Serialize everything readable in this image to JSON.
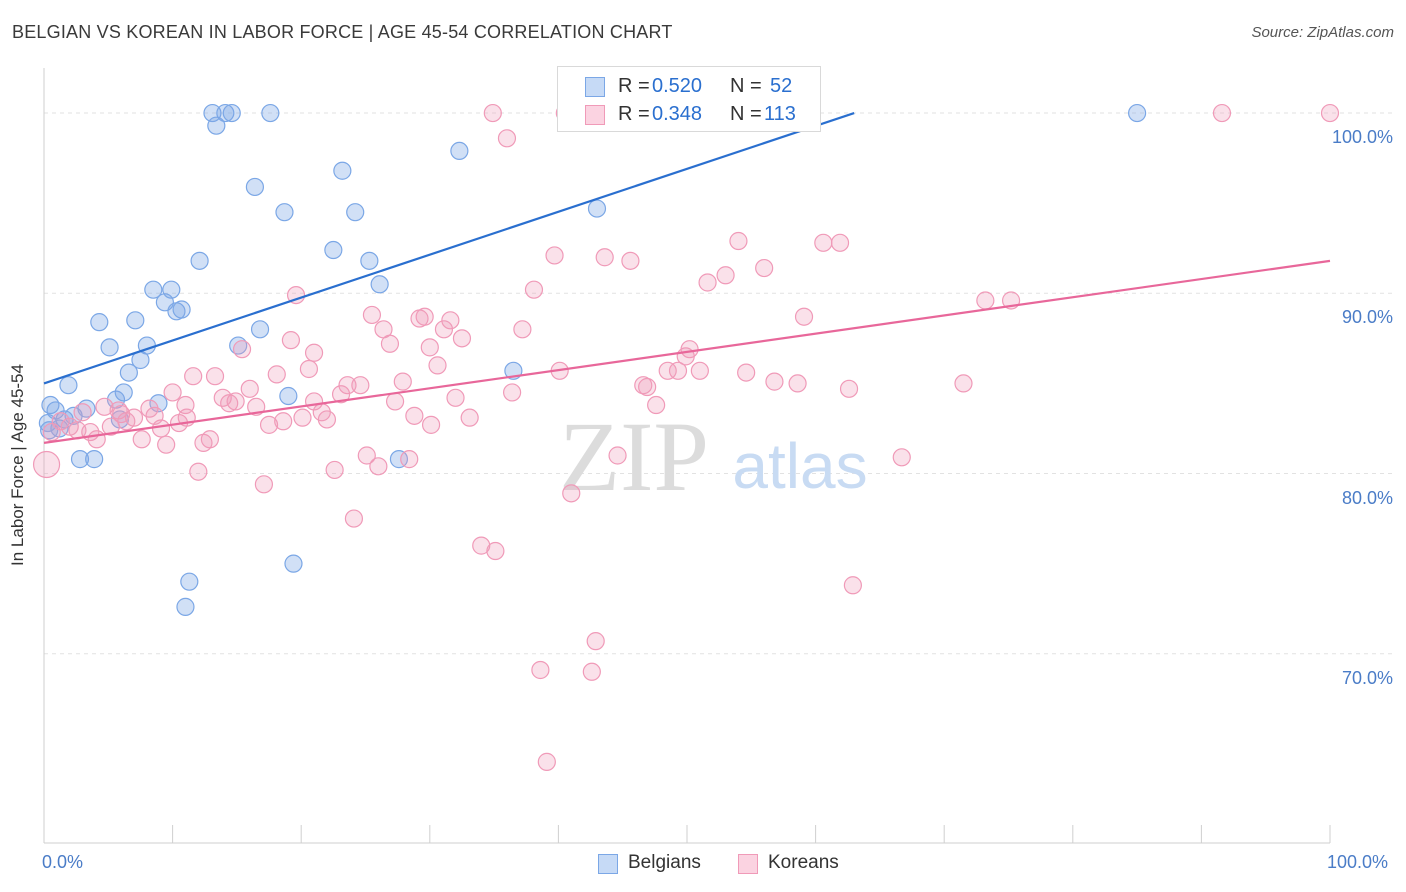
{
  "header": {
    "title": "BELGIAN VS KOREAN IN LABOR FORCE | AGE 45-54 CORRELATION CHART",
    "source": "Source: ZipAtlas.com"
  },
  "watermark": {
    "zip": "ZIP",
    "atlas": "atlas"
  },
  "legend": {
    "rows": [
      {
        "r_label": "R = ",
        "r_value": "0.520",
        "n_label": "N = ",
        "n_value": "52",
        "color": "#7ba7e6"
      },
      {
        "r_label": "R = ",
        "r_value": "0.348",
        "n_label": "N = ",
        "n_value": "113",
        "color": "#f09ab8"
      }
    ]
  },
  "chart_data": {
    "type": "scatter",
    "title": "BELGIAN VS KOREAN IN LABOR FORCE | AGE 45-54 CORRELATION CHART",
    "xlabel": "",
    "ylabel": "In Labor Force | Age 45-54",
    "xlim": [
      0,
      100
    ],
    "ylim": [
      59.5,
      102.5
    ],
    "x_tick_labels": [
      "0.0%",
      "100.0%"
    ],
    "y_ticks": [
      70,
      80,
      90,
      100
    ],
    "y_tick_labels": [
      "70.0%",
      "80.0%",
      "90.0%",
      "100.0%"
    ],
    "grid": true,
    "legend_position": "top-center",
    "series": [
      {
        "name": "Belgians",
        "color": "#7ba7e6",
        "line_color": "#2a6fcf",
        "trend": {
          "x": [
            0,
            63
          ],
          "y": [
            85.0,
            100.0
          ]
        },
        "points": [
          [
            0.3,
            82.8
          ],
          [
            0.5,
            83.8
          ],
          [
            0.9,
            83.5
          ],
          [
            1.2,
            82.5
          ],
          [
            1.6,
            83.0
          ],
          [
            1.9,
            84.9
          ],
          [
            2.3,
            83.2
          ],
          [
            2.8,
            80.8
          ],
          [
            3.3,
            83.6
          ],
          [
            3.9,
            80.8
          ],
          [
            4.3,
            88.4
          ],
          [
            5.1,
            87.0
          ],
          [
            5.6,
            84.1
          ],
          [
            5.9,
            83.0
          ],
          [
            6.2,
            84.5
          ],
          [
            6.6,
            85.6
          ],
          [
            7.1,
            88.5
          ],
          [
            7.5,
            86.3
          ],
          [
            8.0,
            87.1
          ],
          [
            8.5,
            90.2
          ],
          [
            8.9,
            83.9
          ],
          [
            9.4,
            89.5
          ],
          [
            9.9,
            90.2
          ],
          [
            10.3,
            89.0
          ],
          [
            10.7,
            89.1
          ],
          [
            11.3,
            74.0
          ],
          [
            11.0,
            72.6
          ],
          [
            12.1,
            91.8
          ],
          [
            13.1,
            100.0
          ],
          [
            13.4,
            99.3
          ],
          [
            14.1,
            100.0
          ],
          [
            14.6,
            100.0
          ],
          [
            15.1,
            87.1
          ],
          [
            16.4,
            95.9
          ],
          [
            16.8,
            88.0
          ],
          [
            17.6,
            100.0
          ],
          [
            18.7,
            94.5
          ],
          [
            19.0,
            84.3
          ],
          [
            19.4,
            75.0
          ],
          [
            22.5,
            92.4
          ],
          [
            23.2,
            96.8
          ],
          [
            24.2,
            94.5
          ],
          [
            25.3,
            91.8
          ],
          [
            26.1,
            90.5
          ],
          [
            27.6,
            80.8
          ],
          [
            32.3,
            97.9
          ],
          [
            36.5,
            85.7
          ],
          [
            43.0,
            94.7
          ],
          [
            52.0,
            100.0
          ],
          [
            53.5,
            100.0
          ],
          [
            85.0,
            100.0
          ],
          [
            0.4,
            82.4
          ]
        ]
      },
      {
        "name": "Koreans",
        "color": "#f09ab8",
        "line_color": "#e8679a",
        "trend": {
          "x": [
            0,
            100
          ],
          "y": [
            81.7,
            91.8
          ]
        },
        "points": [
          [
            0.2,
            80.5
          ],
          [
            0.6,
            82.3
          ],
          [
            1.3,
            82.9
          ],
          [
            2.0,
            82.6
          ],
          [
            2.6,
            82.4
          ],
          [
            3.0,
            83.4
          ],
          [
            3.6,
            82.3
          ],
          [
            4.1,
            81.9
          ],
          [
            4.7,
            83.7
          ],
          [
            5.2,
            82.6
          ],
          [
            5.8,
            83.5
          ],
          [
            6.4,
            82.9
          ],
          [
            7.0,
            83.1
          ],
          [
            7.6,
            81.9
          ],
          [
            8.2,
            83.6
          ],
          [
            8.6,
            83.2
          ],
          [
            9.1,
            82.5
          ],
          [
            9.5,
            81.6
          ],
          [
            10.0,
            84.5
          ],
          [
            10.5,
            82.8
          ],
          [
            11.1,
            83.1
          ],
          [
            11.6,
            85.4
          ],
          [
            12.0,
            80.1
          ],
          [
            12.4,
            81.7
          ],
          [
            12.9,
            81.9
          ],
          [
            13.3,
            85.4
          ],
          [
            13.9,
            84.2
          ],
          [
            14.4,
            83.9
          ],
          [
            14.9,
            84.0
          ],
          [
            15.4,
            86.9
          ],
          [
            16.0,
            84.7
          ],
          [
            16.5,
            83.7
          ],
          [
            17.1,
            79.4
          ],
          [
            17.5,
            82.7
          ],
          [
            18.1,
            85.5
          ],
          [
            18.6,
            82.9
          ],
          [
            19.2,
            87.4
          ],
          [
            19.6,
            89.9
          ],
          [
            20.1,
            83.1
          ],
          [
            20.6,
            85.8
          ],
          [
            21.0,
            86.7
          ],
          [
            21.6,
            83.4
          ],
          [
            22.0,
            83.0
          ],
          [
            22.6,
            80.2
          ],
          [
            23.1,
            84.4
          ],
          [
            23.6,
            84.9
          ],
          [
            24.1,
            77.5
          ],
          [
            24.6,
            84.9
          ],
          [
            25.1,
            81.0
          ],
          [
            25.5,
            88.8
          ],
          [
            26.0,
            80.4
          ],
          [
            26.4,
            88.0
          ],
          [
            26.9,
            87.2
          ],
          [
            27.3,
            84.0
          ],
          [
            27.9,
            85.1
          ],
          [
            28.4,
            80.8
          ],
          [
            28.8,
            83.2
          ],
          [
            29.2,
            88.6
          ],
          [
            29.6,
            88.7
          ],
          [
            30.1,
            82.7
          ],
          [
            30.6,
            86.0
          ],
          [
            31.1,
            88.0
          ],
          [
            31.6,
            88.5
          ],
          [
            32.0,
            84.2
          ],
          [
            32.5,
            87.5
          ],
          [
            33.1,
            83.1
          ],
          [
            34.0,
            76.0
          ],
          [
            34.9,
            100.0
          ],
          [
            35.1,
            75.7
          ],
          [
            36.0,
            98.6
          ],
          [
            36.4,
            84.5
          ],
          [
            37.2,
            88.0
          ],
          [
            38.1,
            90.2
          ],
          [
            38.6,
            69.1
          ],
          [
            39.1,
            64.0
          ],
          [
            39.7,
            92.1
          ],
          [
            40.1,
            85.7
          ],
          [
            40.5,
            100.0
          ],
          [
            41.0,
            78.9
          ],
          [
            42.6,
            69.0
          ],
          [
            42.9,
            70.7
          ],
          [
            43.6,
            92.0
          ],
          [
            44.6,
            81.0
          ],
          [
            45.6,
            91.8
          ],
          [
            46.6,
            84.9
          ],
          [
            46.9,
            84.8
          ],
          [
            47.6,
            83.8
          ],
          [
            48.5,
            85.7
          ],
          [
            49.3,
            85.7
          ],
          [
            49.9,
            86.5
          ],
          [
            50.2,
            86.9
          ],
          [
            51.0,
            85.7
          ],
          [
            51.6,
            90.6
          ],
          [
            53.0,
            91.0
          ],
          [
            54.0,
            92.9
          ],
          [
            54.6,
            85.6
          ],
          [
            56.0,
            91.4
          ],
          [
            56.8,
            85.1
          ],
          [
            58.6,
            85.0
          ],
          [
            59.1,
            88.7
          ],
          [
            60.6,
            92.8
          ],
          [
            61.9,
            92.8
          ],
          [
            62.6,
            84.7
          ],
          [
            62.9,
            73.8
          ],
          [
            66.7,
            80.9
          ],
          [
            71.5,
            85.0
          ],
          [
            73.2,
            89.6
          ],
          [
            75.2,
            89.6
          ],
          [
            91.6,
            100.0
          ],
          [
            100.0,
            100.0
          ],
          [
            21.0,
            84.0
          ],
          [
            11.0,
            83.8
          ],
          [
            6.0,
            83.3
          ],
          [
            30.0,
            87.0
          ]
        ]
      }
    ]
  },
  "bottom_legend": {
    "items": [
      "Belgians",
      "Koreans"
    ]
  }
}
